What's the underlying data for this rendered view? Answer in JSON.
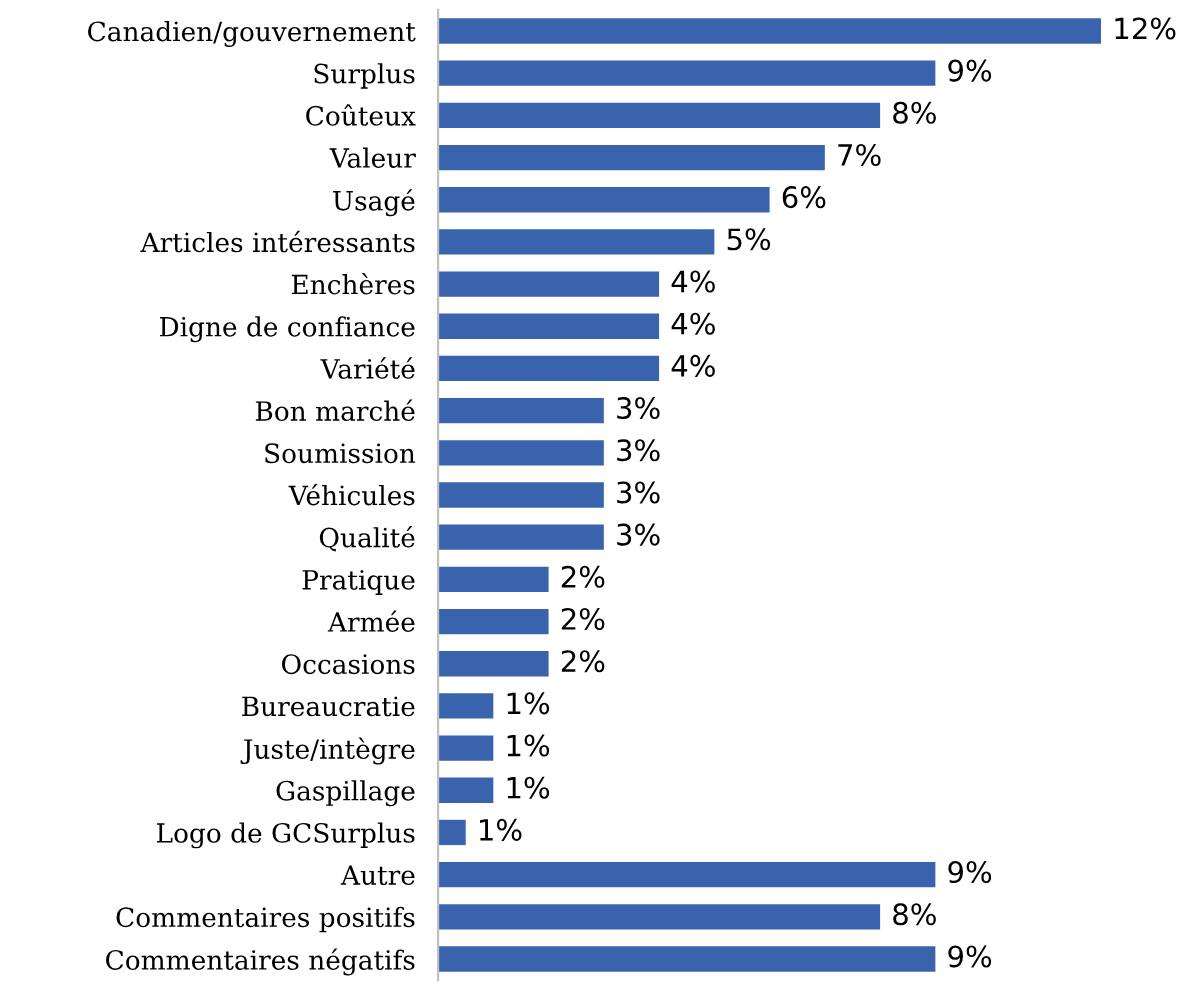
{
  "chart_data": {
    "type": "bar",
    "orientation": "horizontal",
    "color": "#3a63ad",
    "categories": [
      "Canadien/gouvernement",
      "Surplus",
      "Coûteux",
      "Valeur",
      "Usagé",
      "Articles intéressants",
      "Enchères",
      "Digne de confiance",
      "Variété",
      "Bon marché",
      "Soumission",
      "Véhicules",
      "Qualité",
      "Pratique",
      "Armée",
      "Occasions",
      "Bureaucratie",
      "Juste/intègre",
      "Gaspillage",
      "Logo de GCSurplus",
      "Autre",
      "Commentaires positifs",
      "Commentaires négatifs"
    ],
    "values": [
      12,
      9,
      8,
      7,
      6,
      5,
      4,
      4,
      4,
      3,
      3,
      3,
      3,
      2,
      2,
      2,
      1,
      1,
      1,
      0.5,
      9,
      8,
      9
    ],
    "value_labels": [
      "12%",
      "9%",
      "8%",
      "7%",
      "6%",
      "5%",
      "4%",
      "4%",
      "4%",
      "3%",
      "3%",
      "3%",
      "3%",
      "2%",
      "2%",
      "2%",
      "1%",
      "1%",
      "1%",
      "1%",
      "9%",
      "8%",
      "9%"
    ]
  }
}
